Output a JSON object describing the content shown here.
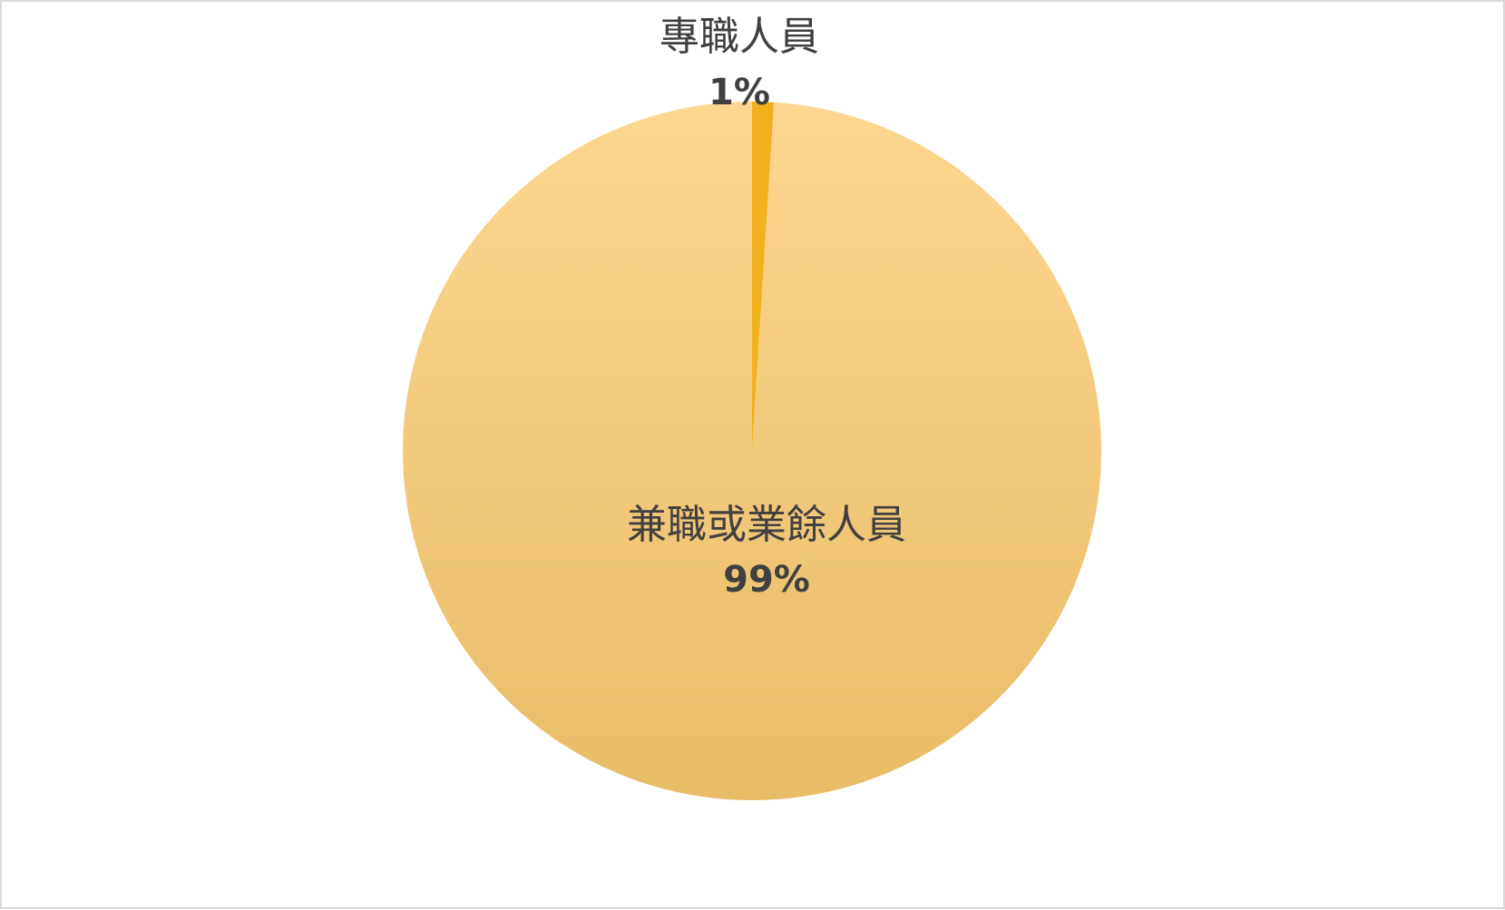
{
  "chart_data": {
    "type": "pie",
    "title": "",
    "start_angle_deg": 0,
    "direction": "clockwise",
    "legend": "none",
    "slices": [
      {
        "label": "專職人員",
        "value": 1,
        "percent_label": "1%",
        "color": "#F2B01E"
      },
      {
        "label": "兼職或業餘人員",
        "value": 99,
        "percent_label": "99%",
        "color": "#FCD38C"
      }
    ]
  },
  "colors": {
    "frame_border": "#D9D9D9",
    "background": "#FFFFFF",
    "label_text": "#404040",
    "gradient_top": "#FDD690",
    "gradient_bottom": "#E8BD68"
  }
}
